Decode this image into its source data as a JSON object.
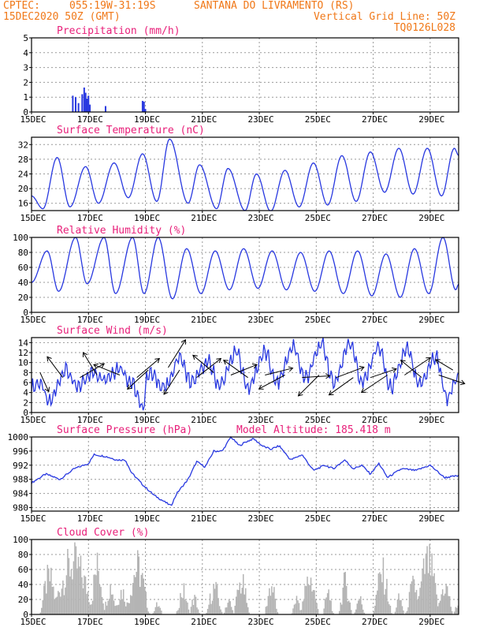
{
  "header": {
    "line1_left": "CPTEC:",
    "line1_coords": "055:19W-31:19S",
    "line1_place": "SANTANA DO LIVRAMENTO (RS)",
    "line2_left": "15DEC2020 50Z (GMT)",
    "line2_right": "Vertical Grid Line: 50Z",
    "line3_right": "TQ0126L028"
  },
  "colors": {
    "header": "#f07818",
    "title": "#e8207a",
    "line": "#2838e0",
    "bar": "#b4b4b4",
    "arrow": "#000000"
  },
  "x_ticks": [
    "15DEC",
    "17DEC",
    "19DEC",
    "21DEC",
    "23DEC",
    "25DEC",
    "27DEC",
    "29DEC"
  ],
  "chart_data": [
    {
      "id": "precip",
      "type": "bar",
      "title": "Precipitation (mm/h)",
      "ylim": [
        0,
        5
      ],
      "yticks": [
        0,
        1,
        2,
        3,
        4,
        5
      ],
      "xrange_days": [
        15,
        30
      ],
      "points": [
        [
          16.45,
          1.1
        ],
        [
          16.55,
          1.0
        ],
        [
          16.65,
          0.6
        ],
        [
          16.78,
          1.2
        ],
        [
          16.85,
          1.65
        ],
        [
          16.9,
          1.3
        ],
        [
          16.95,
          0.9
        ],
        [
          17.0,
          1.1
        ],
        [
          17.05,
          0.5
        ],
        [
          17.6,
          0.4
        ],
        [
          18.9,
          0.75
        ],
        [
          18.95,
          0.7
        ],
        [
          19.0,
          0.2
        ]
      ]
    },
    {
      "id": "temp",
      "type": "line",
      "title": "Surface Temperature (nC)",
      "ylim": [
        14,
        34
      ],
      "yticks": [
        16,
        20,
        24,
        28,
        32
      ],
      "xrange_days": [
        15,
        30
      ],
      "lows": [
        [
          15.0,
          18
        ],
        [
          15.4,
          14.5
        ],
        [
          16.35,
          15
        ],
        [
          17.35,
          16
        ],
        [
          18.4,
          17.5
        ],
        [
          19.4,
          16.5
        ],
        [
          20.5,
          16
        ],
        [
          21.5,
          14.5
        ],
        [
          22.5,
          14
        ],
        [
          23.4,
          13.8
        ],
        [
          24.4,
          15
        ],
        [
          25.4,
          15.5
        ],
        [
          26.4,
          16.5
        ],
        [
          27.4,
          19
        ],
        [
          28.4,
          18.5
        ],
        [
          29.4,
          18
        ],
        [
          30.0,
          29
        ]
      ],
      "highs": [
        [
          15.9,
          28.5
        ],
        [
          16.9,
          26
        ],
        [
          17.9,
          27
        ],
        [
          18.9,
          29.5
        ],
        [
          19.85,
          33.5
        ],
        [
          20.9,
          26.5
        ],
        [
          21.9,
          25.5
        ],
        [
          22.9,
          24
        ],
        [
          23.9,
          25
        ],
        [
          24.9,
          27
        ],
        [
          25.9,
          29
        ],
        [
          26.9,
          30
        ],
        [
          27.9,
          31
        ],
        [
          28.9,
          31
        ],
        [
          29.85,
          31
        ]
      ]
    },
    {
      "id": "rh",
      "type": "line",
      "title": "Relative Humidity (%)",
      "ylim": [
        0,
        100
      ],
      "yticks": [
        0,
        20,
        40,
        60,
        80,
        100
      ],
      "xrange_days": [
        15,
        30
      ],
      "lows": [
        [
          15.0,
          40
        ],
        [
          15.95,
          28
        ],
        [
          16.95,
          38
        ],
        [
          17.95,
          25
        ],
        [
          18.95,
          25
        ],
        [
          19.95,
          18
        ],
        [
          20.95,
          25
        ],
        [
          21.95,
          30
        ],
        [
          22.95,
          32
        ],
        [
          23.95,
          30
        ],
        [
          24.95,
          28
        ],
        [
          25.95,
          25
        ],
        [
          26.95,
          22
        ],
        [
          27.95,
          20
        ],
        [
          28.95,
          25
        ],
        [
          29.9,
          30
        ],
        [
          30.0,
          38
        ]
      ],
      "highs": [
        [
          15.55,
          82
        ],
        [
          16.55,
          100
        ],
        [
          17.55,
          100
        ],
        [
          18.55,
          100
        ],
        [
          19.45,
          100
        ],
        [
          20.45,
          85
        ],
        [
          21.45,
          82
        ],
        [
          22.45,
          85
        ],
        [
          23.45,
          82
        ],
        [
          24.45,
          80
        ],
        [
          25.45,
          82
        ],
        [
          26.45,
          82
        ],
        [
          27.45,
          78
        ],
        [
          28.45,
          85
        ],
        [
          29.45,
          100
        ]
      ]
    },
    {
      "id": "wind",
      "type": "line",
      "title": "Surface Wind (m/s)",
      "ylim": [
        0,
        15
      ],
      "yticks": [
        0,
        2,
        4,
        6,
        8,
        10,
        12,
        14
      ],
      "xrange_days": [
        15,
        30
      ],
      "lows": [
        [
          15.0,
          5
        ],
        [
          15.6,
          2
        ],
        [
          16.6,
          5
        ],
        [
          17.6,
          7
        ],
        [
          18.5,
          6
        ],
        [
          18.9,
          1
        ],
        [
          19.7,
          5
        ],
        [
          20.6,
          6
        ],
        [
          21.6,
          5.5
        ],
        [
          22.6,
          5
        ],
        [
          23.6,
          6
        ],
        [
          24.6,
          7
        ],
        [
          25.6,
          6
        ],
        [
          26.6,
          6
        ],
        [
          27.6,
          5
        ],
        [
          28.6,
          5.5
        ],
        [
          29.6,
          3
        ],
        [
          30.0,
          7
        ]
      ],
      "highs": [
        [
          15.3,
          6
        ],
        [
          16.2,
          8.5
        ],
        [
          17.1,
          8
        ],
        [
          18.1,
          9
        ],
        [
          19.1,
          8
        ],
        [
          20.2,
          11
        ],
        [
          21.2,
          10
        ],
        [
          22.2,
          12
        ],
        [
          23.2,
          12
        ],
        [
          24.2,
          13
        ],
        [
          25.2,
          13.5
        ],
        [
          26.2,
          14
        ],
        [
          27.2,
          13
        ],
        [
          28.2,
          12.5
        ],
        [
          29.2,
          11
        ]
      ],
      "arrows": [
        [
          15.3,
          8,
          0.5,
          -1.1
        ],
        [
          16.1,
          7,
          -0.9,
          1.2
        ],
        [
          16.7,
          7,
          1.4,
          0.8
        ],
        [
          17.3,
          7.5,
          -0.8,
          1.3
        ],
        [
          18.1,
          7.5,
          -1.5,
          0.6
        ],
        [
          18.7,
          7,
          1.3,
          1.1
        ],
        [
          19.1,
          8.5,
          -1.2,
          -1.1
        ],
        [
          19.8,
          9,
          1.0,
          1.6
        ],
        [
          20.2,
          8.5,
          -0.9,
          -1.4
        ],
        [
          20.8,
          7,
          1.4,
          1.1
        ],
        [
          21.4,
          8,
          -1.2,
          1.0
        ],
        [
          22.0,
          7.5,
          1.5,
          0.6
        ],
        [
          22.6,
          7,
          -1.4,
          1.0
        ],
        [
          23.2,
          7.5,
          1.6,
          0.4
        ],
        [
          23.9,
          7.5,
          -1.5,
          -0.8
        ],
        [
          24.5,
          7,
          1.6,
          0.1
        ],
        [
          25.1,
          7.5,
          -1.2,
          -1.2
        ],
        [
          25.7,
          7,
          1.6,
          0.6
        ],
        [
          26.3,
          7,
          -1.4,
          -1.0
        ],
        [
          26.9,
          7,
          1.5,
          0.5
        ],
        [
          27.5,
          7.5,
          -1.5,
          -1.0
        ],
        [
          28.1,
          7.5,
          1.5,
          1.0
        ],
        [
          28.7,
          7,
          -1.2,
          1.0
        ],
        [
          29.3,
          7.5,
          1.5,
          -0.5
        ],
        [
          29.8,
          8.5,
          -1.0,
          0.6
        ]
      ]
    },
    {
      "id": "press",
      "type": "line",
      "title": "Surface Pressure (hPa)",
      "annotation": "Model Altitude: 185.418  m",
      "ylim": [
        979,
        1000
      ],
      "yticks": [
        980,
        984,
        988,
        992,
        996,
        1000
      ],
      "xrange_days": [
        15,
        30
      ],
      "knots": [
        [
          15.0,
          987
        ],
        [
          15.5,
          989.5
        ],
        [
          16.0,
          988
        ],
        [
          16.5,
          991
        ],
        [
          17.0,
          992.5
        ],
        [
          17.2,
          995
        ],
        [
          17.6,
          994.5
        ],
        [
          18.0,
          993.5
        ],
        [
          18.3,
          993.5
        ],
        [
          18.5,
          990
        ],
        [
          18.9,
          986.5
        ],
        [
          19.3,
          983.5
        ],
        [
          19.7,
          981.5
        ],
        [
          19.9,
          980.5
        ],
        [
          20.1,
          984
        ],
        [
          20.5,
          988
        ],
        [
          20.8,
          993
        ],
        [
          21.1,
          991.5
        ],
        [
          21.4,
          996
        ],
        [
          21.7,
          996
        ],
        [
          22.0,
          1000
        ],
        [
          22.3,
          997.5
        ],
        [
          22.5,
          998.5
        ],
        [
          22.8,
          999.5
        ],
        [
          23.1,
          997.5
        ],
        [
          23.4,
          996.5
        ],
        [
          23.7,
          997.5
        ],
        [
          24.1,
          993.5
        ],
        [
          24.5,
          995
        ],
        [
          24.9,
          990.5
        ],
        [
          25.3,
          992
        ],
        [
          25.6,
          991
        ],
        [
          26.0,
          993.5
        ],
        [
          26.3,
          991
        ],
        [
          26.6,
          992
        ],
        [
          26.9,
          989.5
        ],
        [
          27.2,
          992.5
        ],
        [
          27.5,
          988.5
        ],
        [
          28.0,
          991
        ],
        [
          28.5,
          990.5
        ],
        [
          29.0,
          992
        ],
        [
          29.5,
          988.5
        ],
        [
          30.0,
          989
        ]
      ]
    },
    {
      "id": "cloud",
      "type": "bar",
      "title": "Cloud Cover (%)",
      "ylim": [
        0,
        100
      ],
      "yticks": [
        0,
        20,
        40,
        60,
        80,
        100
      ],
      "xrange_days": [
        15,
        30
      ],
      "clusters": [
        [
          15.6,
          0.35,
          70
        ],
        [
          16.45,
          0.85,
          98
        ],
        [
          17.3,
          0.3,
          90
        ],
        [
          17.75,
          0.25,
          55
        ],
        [
          18.15,
          0.3,
          45
        ],
        [
          18.7,
          0.45,
          90
        ],
        [
          19.4,
          0.2,
          18
        ],
        [
          20.3,
          0.25,
          45
        ],
        [
          20.7,
          0.2,
          30
        ],
        [
          21.4,
          0.3,
          50
        ],
        [
          21.9,
          0.2,
          25
        ],
        [
          22.35,
          0.3,
          60
        ],
        [
          23.4,
          0.25,
          55
        ],
        [
          24.3,
          0.2,
          30
        ],
        [
          24.75,
          0.35,
          68
        ],
        [
          25.4,
          0.2,
          40
        ],
        [
          26.0,
          0.25,
          60
        ],
        [
          26.5,
          0.2,
          30
        ],
        [
          27.3,
          0.35,
          78
        ],
        [
          27.9,
          0.2,
          30
        ],
        [
          28.4,
          0.3,
          55
        ],
        [
          28.9,
          0.45,
          100
        ],
        [
          29.5,
          0.3,
          55
        ],
        [
          29.95,
          0.15,
          20
        ]
      ]
    }
  ]
}
